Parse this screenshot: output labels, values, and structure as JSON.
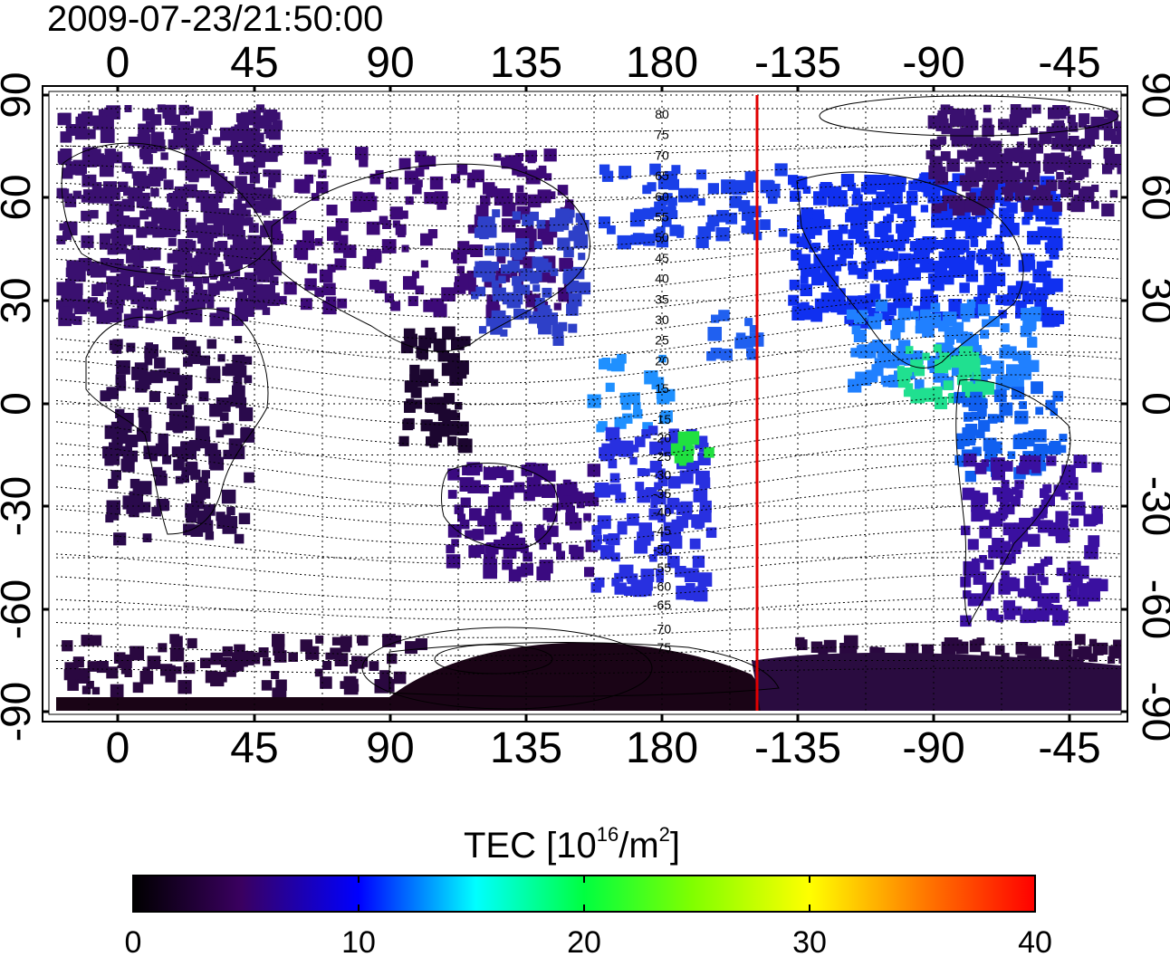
{
  "timestamp": "2009-07-23/21:50:00",
  "map": {
    "lon_ticks": [
      "0",
      "45",
      "90",
      "135",
      "180",
      "-135",
      "-90",
      "-45"
    ],
    "lat_ticks": [
      "90",
      "60",
      "30",
      "0",
      "-30",
      "-60",
      "-90"
    ],
    "contour_labels_north": [
      "80",
      "75",
      "70",
      "65",
      "60",
      "55",
      "50",
      "45",
      "40",
      "35",
      "30",
      "25",
      "20",
      "15"
    ],
    "contour_labels_south": [
      "-15",
      "-20",
      "-25",
      "-30",
      "-35",
      "-40",
      "-45",
      "-50",
      "-55",
      "-60",
      "-65",
      "-70",
      "-75"
    ],
    "marker_line_color": "#e00000",
    "grid": true
  },
  "colorbar": {
    "title_prefix": "TEC  [10",
    "title_exp": "16",
    "title_mid": "/m",
    "title_exp2": "2",
    "title_suffix": "]",
    "tick_labels": [
      "0",
      "10",
      "20",
      "30",
      "40"
    ],
    "range": [
      0,
      40
    ],
    "colors": [
      "#000000",
      "#4a0070",
      "#0000ff",
      "#00ffff",
      "#00ff00",
      "#ffff00",
      "#ff8000",
      "#ff0000"
    ]
  }
}
